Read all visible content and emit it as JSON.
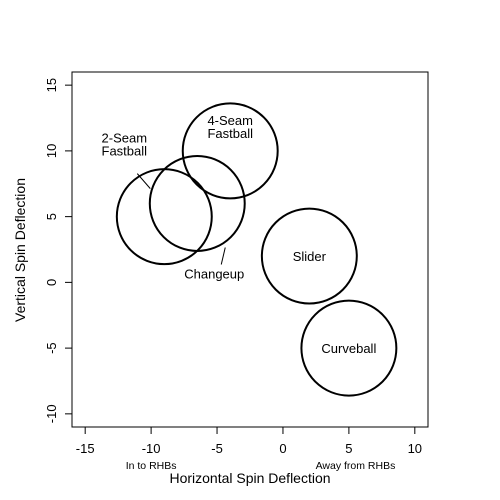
{
  "chart_data": {
    "type": "scatter",
    "title": "",
    "xlabel": "Horizontal Spin Deflection",
    "ylabel": "Vertical Spin Deflection",
    "xlim": [
      -16,
      11
    ],
    "ylim": [
      -11,
      16
    ],
    "x_ticks": [
      -15,
      -10,
      -5,
      0,
      5,
      10
    ],
    "y_ticks": [
      -10,
      -5,
      0,
      5,
      10,
      15
    ],
    "x_tick_labels": [
      "-15",
      "-10",
      "-5",
      "0",
      "5",
      "10"
    ],
    "y_tick_labels": [
      "-10",
      "-5",
      "0",
      "5",
      "10",
      "15"
    ],
    "x_annotations": [
      {
        "text": "In to RHBs",
        "x": -10
      },
      {
        "text": "Away from RHBs",
        "x": 5.5
      }
    ],
    "pitches": [
      {
        "name": "4-Seam Fastball",
        "label_lines": [
          "4-Seam",
          "Fastball"
        ],
        "x": -4,
        "y": 10,
        "radius": 3.6
      },
      {
        "name": "2-Seam Fastball",
        "label_lines": [
          "2-Seam",
          "Fastball"
        ],
        "x": -9,
        "y": 5,
        "radius": 3.6
      },
      {
        "name": "Changeup",
        "label_lines": [
          "Changeup"
        ],
        "x": -6.5,
        "y": 6,
        "radius": 3.6
      },
      {
        "name": "Slider",
        "label_lines": [
          "Slider"
        ],
        "x": 2,
        "y": 2,
        "radius": 3.6
      },
      {
        "name": "Curveball",
        "label_lines": [
          "Curveball"
        ],
        "x": 5,
        "y": -5,
        "radius": 3.6
      }
    ]
  }
}
